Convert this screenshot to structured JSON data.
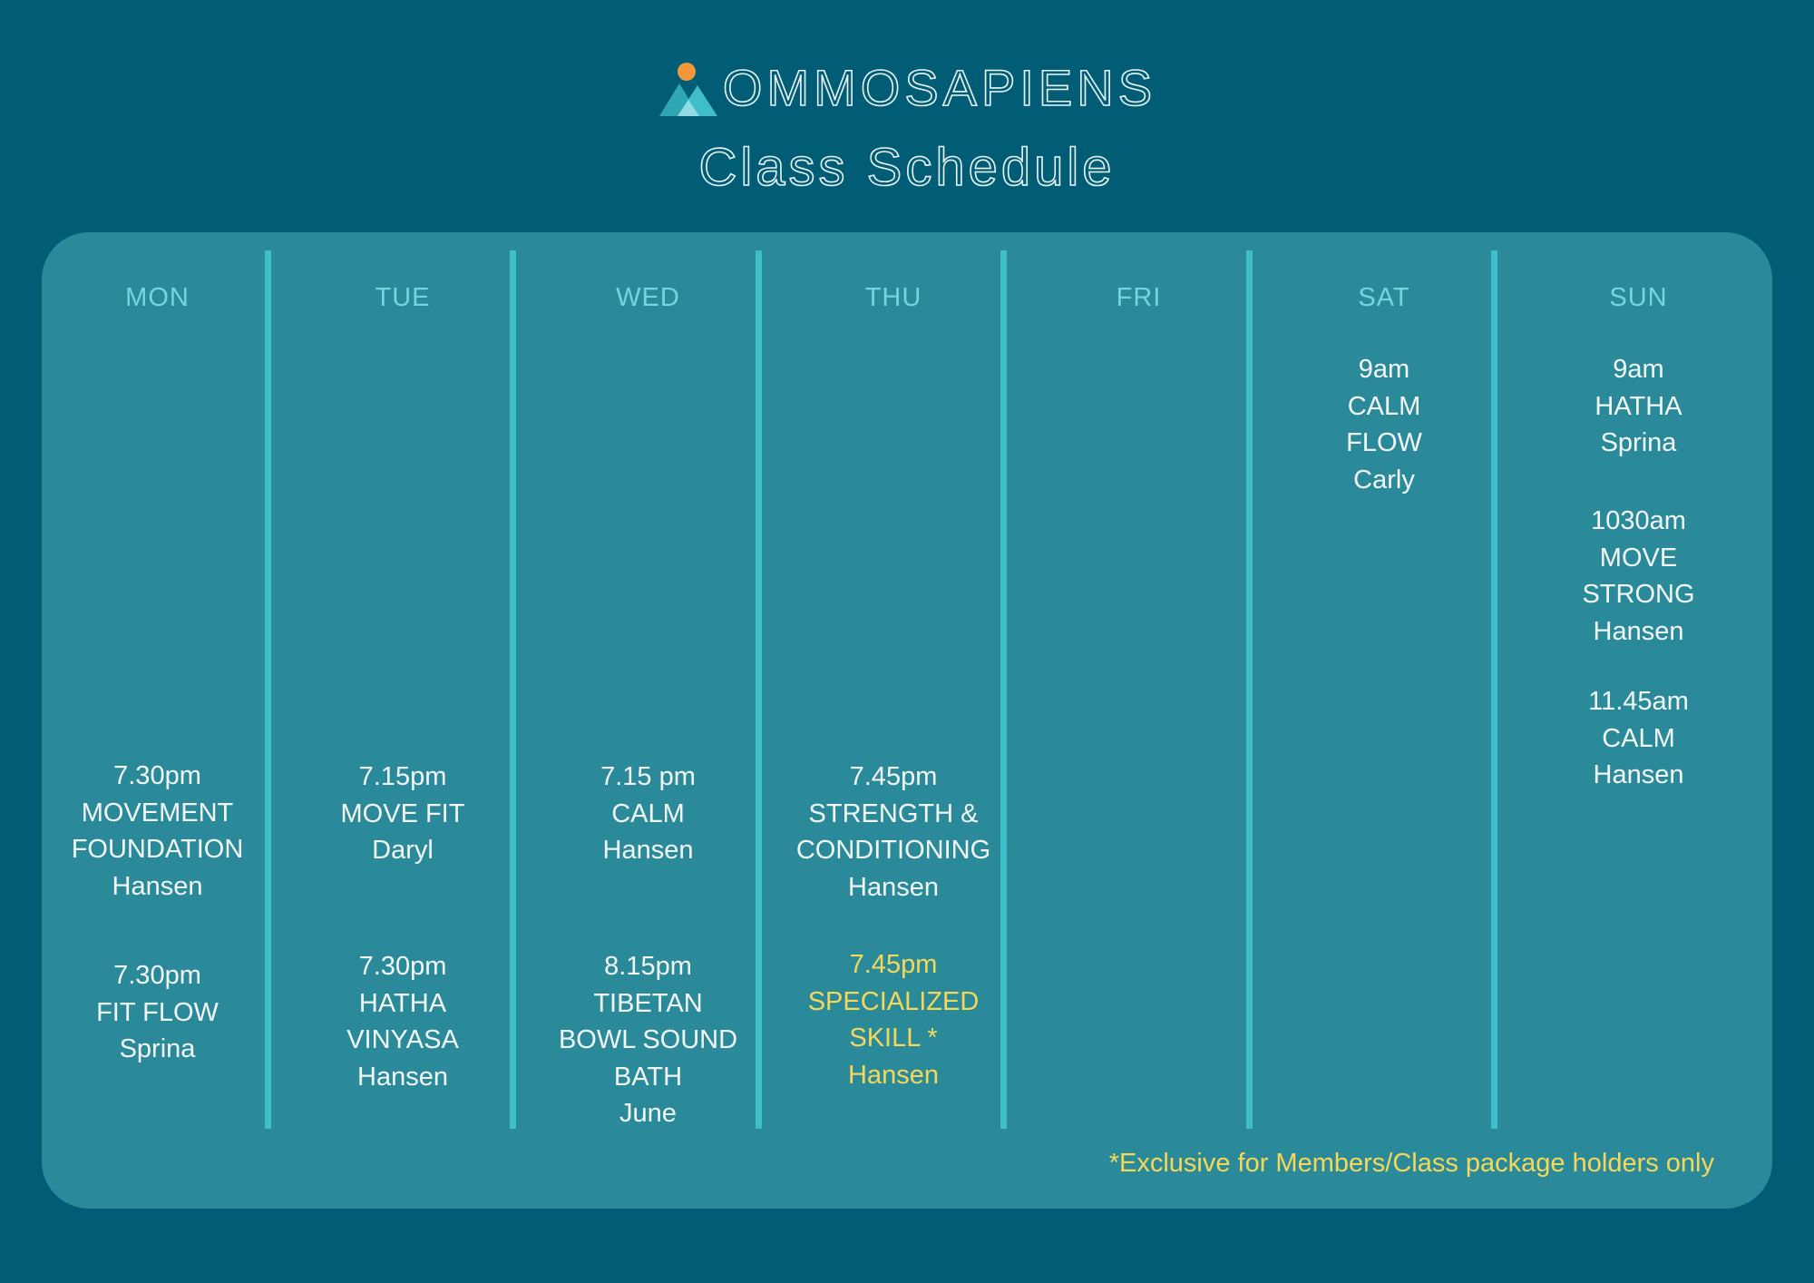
{
  "header": {
    "brand": "OMMOSAPIENS",
    "title": "Class Schedule"
  },
  "colors": {
    "background": "#005d75",
    "panel": "#2b8a99",
    "divider": "#3fbdc9",
    "day_header": "#73d6de",
    "class_text": "#f2f7f8",
    "highlight": "#f5d85a",
    "logo_sun": "#f4963a",
    "logo_mountain": "#3fbdc9"
  },
  "days": [
    {
      "label": "MON",
      "classes": [
        {
          "time": "7.30pm",
          "lines": [
            "MOVEMENT",
            "FOUNDATION"
          ],
          "instructor": "Hansen"
        },
        {
          "time": "7.30pm",
          "lines": [
            "FIT FLOW"
          ],
          "instructor": "Sprina"
        }
      ]
    },
    {
      "label": "TUE",
      "classes": [
        {
          "time": "7.15pm",
          "lines": [
            "MOVE FIT"
          ],
          "instructor": "Daryl"
        },
        {
          "time": "7.30pm",
          "lines": [
            "HATHA",
            "VINYASA"
          ],
          "instructor": "Hansen"
        }
      ]
    },
    {
      "label": "WED",
      "classes": [
        {
          "time": "7.15 pm",
          "lines": [
            "CALM"
          ],
          "instructor": "Hansen"
        },
        {
          "time": "8.15pm",
          "lines": [
            "TIBETAN",
            "BOWL SOUND",
            "BATH"
          ],
          "instructor": "June"
        }
      ]
    },
    {
      "label": "THU",
      "classes": [
        {
          "time": "7.45pm",
          "lines": [
            "STRENGTH &",
            "CONDITIONING"
          ],
          "instructor": "Hansen"
        },
        {
          "time": "7.45pm",
          "lines": [
            "SPECIALIZED",
            "SKILL *"
          ],
          "instructor": "Hansen",
          "highlight": true
        }
      ]
    },
    {
      "label": "FRI",
      "classes": []
    },
    {
      "label": "SAT",
      "classes": [
        {
          "time": "9am",
          "lines": [
            "CALM",
            "FLOW"
          ],
          "instructor": "Carly"
        }
      ]
    },
    {
      "label": "SUN",
      "classes": [
        {
          "time": "9am",
          "lines": [
            "HATHA"
          ],
          "instructor": "Sprina"
        },
        {
          "time": "1030am",
          "lines": [
            "MOVE",
            "STRONG"
          ],
          "instructor": "Hansen"
        },
        {
          "time": "11.45am",
          "lines": [
            "CALM"
          ],
          "instructor": "Hansen"
        }
      ]
    }
  ],
  "footnote": "*Exclusive for Members/Class package holders only"
}
